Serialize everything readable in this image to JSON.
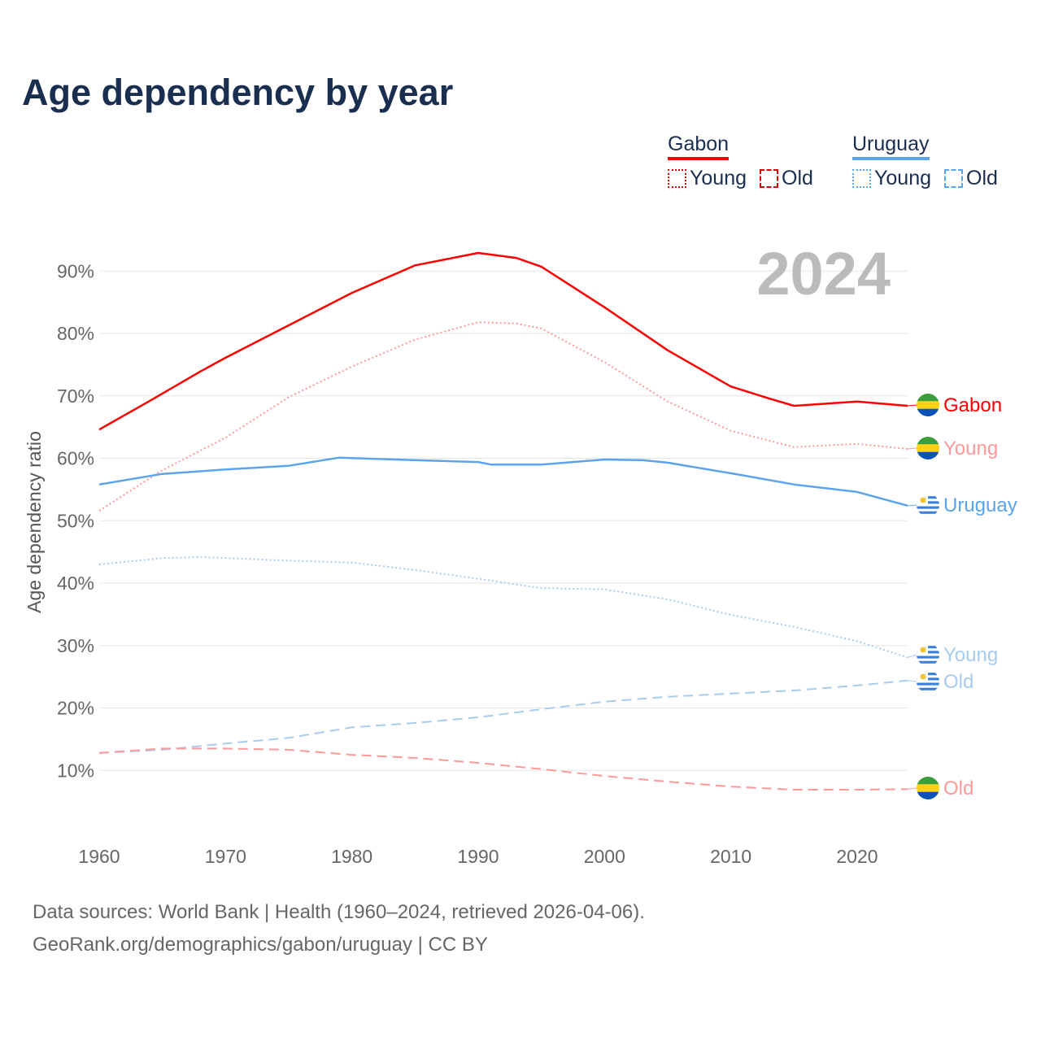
{
  "title": "Age dependency by year",
  "year_watermark": "2024",
  "legend": {
    "countries": [
      {
        "name": "Gabon",
        "color": "#ff0000",
        "light": "#ff9999"
      },
      {
        "name": "Uruguay",
        "color": "#5ba4ec",
        "light": "#a8cbf0"
      }
    ],
    "young_label": "Young",
    "old_label": "Old"
  },
  "footer": {
    "line1": "Data sources: World Bank | Health (1960–2024, retrieved 2026-04-06).",
    "line2": "GeoRank.org/demographics/gabon/uruguay | CC BY"
  },
  "chart_data": {
    "type": "line",
    "title": "Age dependency by year",
    "xlabel": "",
    "ylabel": "Age dependency ratio",
    "xlim": [
      1960,
      2024
    ],
    "ylim": [
      0,
      95
    ],
    "x_ticks": [
      "1960",
      "1970",
      "1980",
      "1990",
      "2000",
      "2010",
      "2020"
    ],
    "y_ticks": [
      "10%",
      "20%",
      "30%",
      "40%",
      "50%",
      "60%",
      "70%",
      "80%",
      "90%"
    ],
    "grid": true,
    "series": [
      {
        "name": "Gabon",
        "label": "Gabon",
        "country": "gabon",
        "style": "solid",
        "color": "#ff0000",
        "x": [
          1960,
          1964,
          1968,
          1970,
          1975,
          1980,
          1985,
          1990,
          1993,
          1995,
          2000,
          2005,
          2010,
          2013,
          2015,
          2020,
          2024
        ],
        "values": [
          64.6,
          69.2,
          73.9,
          76.1,
          81.3,
          86.5,
          90.9,
          92.9,
          92.1,
          90.7,
          84.2,
          77.3,
          71.5,
          69.6,
          68.4,
          69.1,
          68.4
        ]
      },
      {
        "name": "Gabon Young",
        "label": "Young",
        "country": "gabon",
        "style": "dotted",
        "color": "#ff9999",
        "x": [
          1960,
          1965,
          1970,
          1975,
          1980,
          1985,
          1990,
          1993,
          1995,
          2000,
          2005,
          2010,
          2015,
          2020,
          2024
        ],
        "values": [
          51.6,
          58.1,
          63.3,
          69.8,
          74.7,
          79.0,
          81.8,
          81.6,
          80.8,
          75.4,
          69.1,
          64.4,
          61.8,
          62.3,
          61.5
        ]
      },
      {
        "name": "Uruguay",
        "label": "Uruguay",
        "country": "uruguay",
        "style": "solid",
        "color": "#5ba4ec",
        "x": [
          1960,
          1965,
          1970,
          1975,
          1979,
          1985,
          1990,
          1991,
          1995,
          2000,
          2003,
          2005,
          2010,
          2015,
          2020,
          2024
        ],
        "values": [
          55.8,
          57.5,
          58.2,
          58.8,
          60.1,
          59.7,
          59.4,
          59.0,
          59.0,
          59.8,
          59.7,
          59.3,
          57.6,
          55.8,
          54.6,
          52.4
        ]
      },
      {
        "name": "Uruguay Young",
        "label": "Young",
        "country": "uruguay",
        "style": "dotted",
        "color": "#a8cbf0",
        "x": [
          1960,
          1965,
          1968,
          1975,
          1980,
          1985,
          1990,
          1995,
          2000,
          2005,
          2010,
          2015,
          2020,
          2024
        ],
        "values": [
          43.0,
          44.0,
          44.2,
          43.6,
          43.3,
          42.1,
          40.7,
          39.2,
          39.0,
          37.4,
          34.9,
          33.0,
          30.7,
          28.1
        ]
      },
      {
        "name": "Uruguay Old",
        "label": "Old",
        "country": "uruguay",
        "style": "dashed",
        "color": "#a8cbf0",
        "x": [
          1960,
          1965,
          1970,
          1975,
          1980,
          1985,
          1990,
          1995,
          2000,
          2005,
          2010,
          2015,
          2020,
          2024
        ],
        "values": [
          12.8,
          13.3,
          14.3,
          15.2,
          16.9,
          17.6,
          18.5,
          19.8,
          21.0,
          21.8,
          22.3,
          22.8,
          23.6,
          24.4
        ]
      },
      {
        "name": "Gabon Old",
        "label": "Old",
        "country": "gabon",
        "style": "dashed",
        "color": "#ff9999",
        "x": [
          1960,
          1965,
          1970,
          1975,
          1980,
          1985,
          1990,
          1995,
          2000,
          2005,
          2010,
          2015,
          2020,
          2024
        ],
        "values": [
          12.8,
          13.5,
          13.5,
          13.3,
          12.5,
          12.0,
          11.2,
          10.2,
          9.1,
          8.2,
          7.4,
          6.9,
          6.9,
          7.0
        ]
      }
    ]
  }
}
